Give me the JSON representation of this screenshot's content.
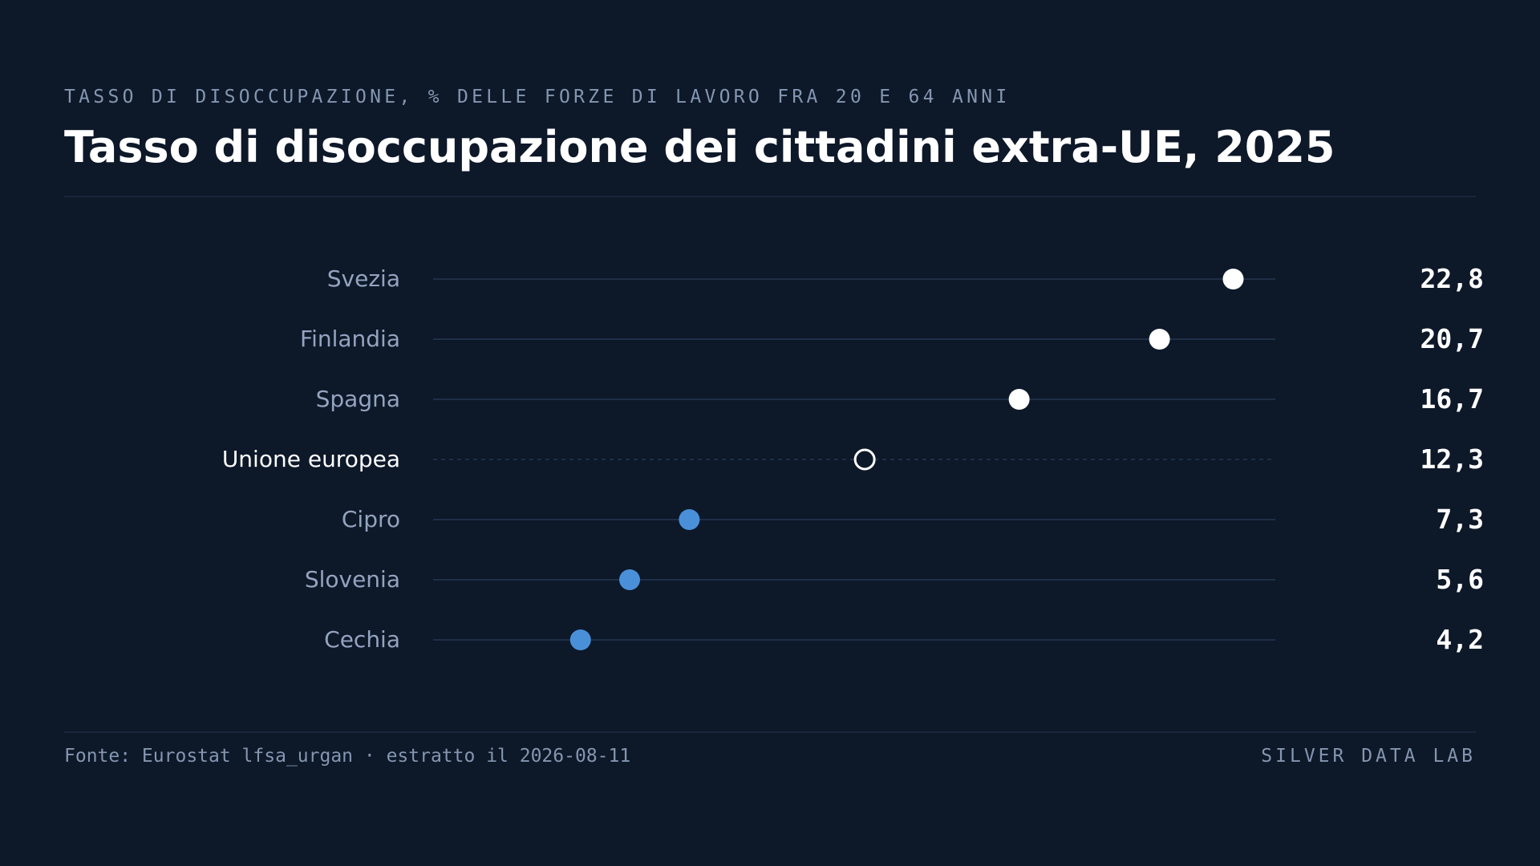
{
  "header": {
    "kicker": "TASSO DI DISOCCUPAZIONE, % DELLE FORZE DI LAVORO FRA 20 E 64 ANNI",
    "title": "Tasso di disoccupazione dei cittadini extra-UE, 2025"
  },
  "footer": {
    "source": "Fonte: Eurostat lfsa_urgan · estratto il 2026-08-11",
    "brand": "SILVER DATA LAB"
  },
  "colors": {
    "background": "#0d1829",
    "high": "#ffffff",
    "low": "#4a90d9",
    "reference": "#ffffff",
    "country_label": "#94a3bf",
    "reference_label": "#ffffff",
    "value_label": "#ffffff",
    "track": "#1e2f47"
  },
  "chart_data": {
    "type": "scatter",
    "variant": "dot-plot",
    "xlim": [
      0,
      24
    ],
    "grid": false,
    "legend": "none",
    "categories": [
      "Svezia",
      "Finlandia",
      "Spagna",
      "Unione europea",
      "Cipro",
      "Slovenia",
      "Cechia"
    ],
    "values": [
      22.8,
      20.7,
      16.7,
      12.3,
      7.3,
      5.6,
      4.2
    ],
    "value_labels": [
      "22,8",
      "20,7",
      "16,7",
      "12,3",
      "7,3",
      "5,6",
      "4,2"
    ],
    "reference_category": "Unione europea"
  }
}
